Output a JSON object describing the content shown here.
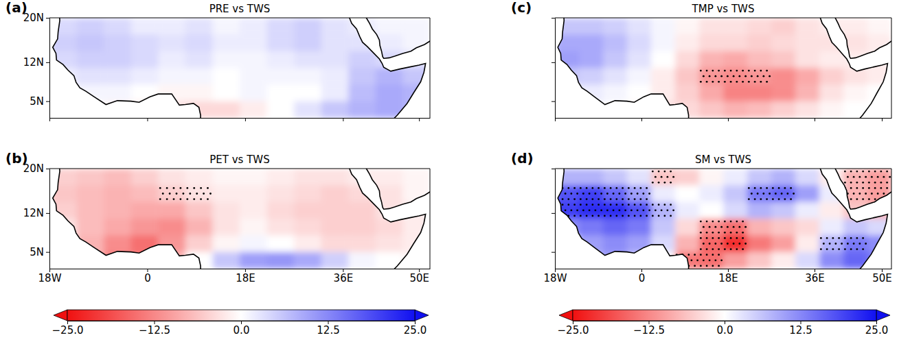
{
  "chart_data": [
    {
      "type": "heatmap",
      "title": "PRE vs TWS",
      "panel_label": "(a)",
      "x": [
        -15.5,
        -10.5,
        -5.5,
        -0.5,
        4.5,
        9.5,
        14.5,
        19.5,
        24.5,
        29.5,
        34.5,
        39.5,
        44.5,
        49.5
      ],
      "y": [
        18.5,
        15.5,
        12.5,
        9.5,
        6.5,
        3.5
      ],
      "values": [
        [
          4,
          5,
          4,
          2,
          2,
          3,
          1,
          2,
          4,
          5,
          3,
          2,
          1,
          1
        ],
        [
          5,
          6,
          5,
          4,
          3,
          4,
          2,
          2,
          4,
          5,
          3,
          3,
          2,
          1
        ],
        [
          4,
          5,
          5,
          4,
          2,
          3,
          1,
          1,
          2,
          3,
          3,
          5,
          4,
          3
        ],
        [
          2,
          3,
          3,
          2,
          1,
          1,
          0,
          1,
          1,
          1,
          2,
          6,
          8,
          6
        ],
        [
          null,
          1,
          1,
          0,
          -1,
          -1,
          0,
          1,
          0,
          0,
          2,
          7,
          9,
          8
        ],
        [
          null,
          0,
          -1,
          -2,
          -3,
          -4,
          -4,
          -2,
          0,
          3,
          6,
          8,
          9,
          8
        ]
      ],
      "xlim": [
        -18,
        52
      ],
      "ylim": [
        2,
        20
      ],
      "xticks": [
        {
          "value": -18,
          "label": "18W"
        },
        0,
        {
          "value": 18,
          "label": "18E"
        },
        {
          "value": 36,
          "label": "36E"
        },
        {
          "value": 50,
          "label": "50E"
        }
      ],
      "yticks": [
        {
          "value": 5,
          "label": "5N"
        },
        {
          "value": 12,
          "label": "12N"
        },
        {
          "value": 20,
          "label": "20N"
        }
      ],
      "tick_labels": "y"
    },
    {
      "type": "heatmap",
      "title": "PET vs TWS",
      "panel_label": "(b)",
      "x": [
        -15.5,
        -10.5,
        -5.5,
        -0.5,
        4.5,
        9.5,
        14.5,
        19.5,
        24.5,
        29.5,
        34.5,
        39.5,
        44.5,
        49.5
      ],
      "y": [
        18.5,
        15.5,
        12.5,
        9.5,
        6.5,
        3.5
      ],
      "values": [
        [
          -5,
          -6,
          -7,
          -5,
          -3,
          -2,
          -1,
          -1,
          -2,
          -3,
          -3,
          -2,
          -2,
          -1
        ],
        [
          -6,
          -7,
          -8,
          -7,
          -5,
          -3,
          -2,
          -2,
          -3,
          -4,
          -5,
          -4,
          -3,
          -1
        ],
        [
          -5,
          -7,
          -8,
          -9,
          -9,
          -6,
          -3,
          -2,
          -4,
          -5,
          -5,
          -5,
          -3,
          -2
        ],
        [
          -3,
          -7,
          -9,
          -11,
          -12,
          -8,
          -3,
          -1,
          -3,
          -4,
          -5,
          -5,
          -4,
          -2
        ],
        [
          null,
          -8,
          -12,
          -15,
          -11,
          -5,
          -1,
          1,
          0,
          -2,
          -4,
          -4,
          -3,
          -2
        ],
        [
          null,
          -8,
          -13,
          -14,
          -8,
          0,
          6,
          10,
          11,
          9,
          5,
          1,
          0,
          -1
        ]
      ],
      "significant": [
        [
          0,
          0,
          0,
          0,
          0,
          0,
          0,
          0,
          0,
          0,
          0,
          0,
          0,
          0
        ],
        [
          0,
          0,
          0,
          0,
          1,
          1,
          0,
          0,
          0,
          0,
          0,
          0,
          0,
          0
        ],
        [
          0,
          0,
          0,
          0,
          0,
          0,
          0,
          0,
          0,
          0,
          0,
          0,
          0,
          0
        ],
        [
          0,
          0,
          0,
          0,
          0,
          0,
          0,
          0,
          0,
          0,
          0,
          0,
          0,
          0
        ],
        [
          0,
          0,
          0,
          0,
          0,
          0,
          0,
          0,
          0,
          0,
          0,
          0,
          0,
          0
        ],
        [
          0,
          0,
          0,
          0,
          0,
          0,
          0,
          0,
          0,
          0,
          0,
          0,
          0,
          0
        ]
      ],
      "xlim": [
        -18,
        52
      ],
      "ylim": [
        2,
        20
      ],
      "xticks": [
        {
          "value": -18,
          "label": "18W"
        },
        0,
        {
          "value": 18,
          "label": "18E"
        },
        {
          "value": 36,
          "label": "36E"
        },
        {
          "value": 50,
          "label": "50E"
        }
      ],
      "yticks": [
        {
          "value": 5,
          "label": "5N"
        },
        {
          "value": 12,
          "label": "12N"
        },
        {
          "value": 20,
          "label": "20N"
        }
      ],
      "colorbar": {
        "range": [
          -25,
          25
        ],
        "ticks": [
          {
            "value": -25,
            "label": "−25.0"
          },
          {
            "value": -12.5,
            "label": "−12.5"
          },
          {
            "value": 0,
            "label": "0.0"
          },
          {
            "value": 12.5,
            "label": "12.5"
          },
          {
            "value": 25,
            "label": "25.0"
          }
        ]
      }
    },
    {
      "type": "heatmap",
      "title": "TMP vs TWS",
      "panel_label": "(c)",
      "x": [
        -15.5,
        -10.5,
        -5.5,
        -0.5,
        4.5,
        9.5,
        14.5,
        19.5,
        24.5,
        29.5,
        34.5,
        39.5,
        44.5,
        49.5
      ],
      "y": [
        18.5,
        15.5,
        12.5,
        9.5,
        6.5,
        3.5
      ],
      "values": [
        [
          6,
          6,
          5,
          3,
          1,
          -1,
          -3,
          -3,
          -4,
          -5,
          -3,
          -2,
          -2,
          -1
        ],
        [
          9,
          9,
          7,
          4,
          1,
          -2,
          -4,
          -4,
          -5,
          -4,
          -3,
          -3,
          -3,
          -2
        ],
        [
          10,
          9,
          6,
          3,
          0,
          -4,
          -8,
          -9,
          -7,
          -6,
          -3,
          -2,
          -2,
          -2
        ],
        [
          6,
          5,
          3,
          1,
          -2,
          -6,
          -11,
          -12,
          -11,
          -12,
          -9,
          -5,
          -3,
          -2
        ],
        [
          null,
          2,
          1,
          0,
          -2,
          -5,
          -9,
          -13,
          -13,
          -12,
          -8,
          -3,
          -1,
          0
        ],
        [
          null,
          1,
          0,
          -1,
          -3,
          -4,
          -6,
          -8,
          -7,
          -5,
          -3,
          -1,
          0,
          0
        ]
      ],
      "significant": [
        [
          0,
          0,
          0,
          0,
          0,
          0,
          0,
          0,
          0,
          0,
          0,
          0,
          0,
          0
        ],
        [
          0,
          0,
          0,
          0,
          0,
          0,
          0,
          0,
          0,
          0,
          0,
          0,
          0,
          0
        ],
        [
          0,
          0,
          0,
          0,
          0,
          0,
          0,
          0,
          0,
          0,
          0,
          0,
          0,
          0
        ],
        [
          0,
          0,
          0,
          0,
          0,
          0,
          1,
          1,
          1,
          0,
          0,
          0,
          0,
          0
        ],
        [
          0,
          0,
          0,
          0,
          0,
          0,
          0,
          0,
          0,
          0,
          0,
          0,
          0,
          0
        ],
        [
          0,
          0,
          0,
          0,
          0,
          0,
          0,
          0,
          0,
          0,
          0,
          0,
          0,
          0
        ]
      ],
      "xlim": [
        -18,
        52
      ],
      "ylim": [
        2,
        20
      ],
      "xticks": [
        {
          "value": -18,
          "label": "18W"
        },
        0,
        {
          "value": 18,
          "label": "18E"
        },
        {
          "value": 36,
          "label": "36E"
        },
        {
          "value": 50,
          "label": "50E"
        }
      ],
      "yticks": [
        {
          "value": 5,
          "label": "5N"
        },
        {
          "value": 12,
          "label": "12N"
        },
        {
          "value": 20,
          "label": "20N"
        }
      ],
      "tick_labels": false
    },
    {
      "type": "heatmap",
      "title": "SM vs TWS",
      "panel_label": "(d)",
      "x": [
        -15.5,
        -10.5,
        -5.5,
        -0.5,
        4.5,
        9.5,
        14.5,
        19.5,
        24.5,
        29.5,
        34.5,
        39.5,
        44.5,
        49.5
      ],
      "y": [
        18.5,
        15.5,
        12.5,
        9.5,
        6.5,
        3.5
      ],
      "values": [
        [
          8,
          8,
          6,
          3,
          -6,
          -5,
          -1,
          2,
          6,
          8,
          4,
          -2,
          -8,
          -10
        ],
        [
          18,
          20,
          16,
          10,
          2,
          0,
          2,
          6,
          14,
          16,
          10,
          2,
          -8,
          -10
        ],
        [
          20,
          22,
          22,
          18,
          8,
          2,
          0,
          4,
          8,
          6,
          2,
          -2,
          -6,
          -8
        ],
        [
          12,
          14,
          16,
          14,
          6,
          -4,
          -12,
          -15,
          -8,
          -6,
          -4,
          2,
          6,
          4
        ],
        [
          null,
          10,
          12,
          10,
          4,
          -8,
          -16,
          -22,
          -14,
          -10,
          -2,
          8,
          14,
          12
        ],
        [
          null,
          8,
          10,
          6,
          0,
          -14,
          -15,
          -10,
          -6,
          -2,
          4,
          12,
          16,
          14
        ]
      ],
      "significant": [
        [
          0,
          0,
          0,
          0,
          1,
          0,
          0,
          0,
          0,
          0,
          0,
          0,
          1,
          1
        ],
        [
          1,
          1,
          1,
          1,
          0,
          0,
          0,
          0,
          1,
          1,
          0,
          0,
          1,
          1
        ],
        [
          1,
          1,
          1,
          1,
          1,
          0,
          0,
          0,
          0,
          0,
          0,
          0,
          0,
          0
        ],
        [
          0,
          0,
          0,
          0,
          0,
          0,
          1,
          1,
          0,
          0,
          0,
          0,
          0,
          0
        ],
        [
          0,
          0,
          0,
          0,
          0,
          0,
          1,
          1,
          0,
          0,
          0,
          1,
          1,
          0
        ],
        [
          0,
          0,
          0,
          0,
          0,
          1,
          1,
          0,
          0,
          0,
          0,
          0,
          0,
          0
        ]
      ],
      "xlim": [
        -18,
        52
      ],
      "ylim": [
        2,
        20
      ],
      "xticks": [
        {
          "value": -18,
          "label": "18W"
        },
        0,
        {
          "value": 18,
          "label": "18E"
        },
        {
          "value": 36,
          "label": "36E"
        },
        {
          "value": 50,
          "label": "50E"
        }
      ],
      "yticks": [
        {
          "value": 5,
          "label": "5N"
        },
        {
          "value": 12,
          "label": "12N"
        },
        {
          "value": 20,
          "label": "20N"
        }
      ],
      "tick_labels": "x",
      "colorbar": {
        "range": [
          -25,
          25
        ],
        "ticks": [
          {
            "value": -25,
            "label": "−25.0"
          },
          {
            "value": -12.5,
            "label": "−12.5"
          },
          {
            "value": 0,
            "label": "0.0"
          },
          {
            "value": 12.5,
            "label": "12.5"
          },
          {
            "value": 25,
            "label": "25.0"
          }
        ]
      }
    }
  ]
}
